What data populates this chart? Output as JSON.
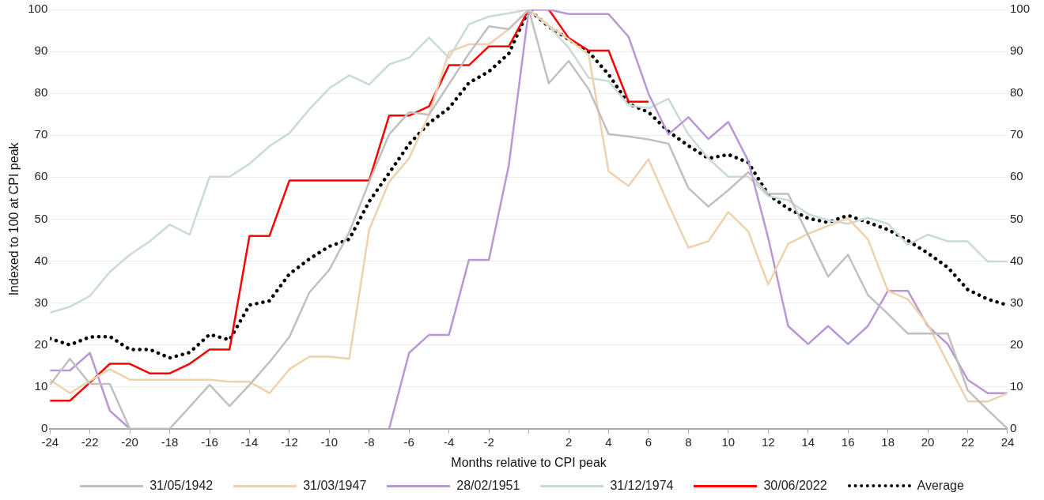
{
  "chart_data": {
    "type": "line",
    "xlabel": "Months relative to CPI peak",
    "ylabel": "Indexed to 100 at CPI peak",
    "x": [
      -24,
      -23,
      -22,
      -21,
      -20,
      -19,
      -18,
      -17,
      -16,
      -15,
      -14,
      -13,
      -12,
      -11,
      -10,
      -9,
      -8,
      -7,
      -6,
      -5,
      -4,
      -3,
      -2,
      -1,
      0,
      1,
      2,
      3,
      4,
      5,
      6,
      7,
      8,
      9,
      10,
      11,
      12,
      13,
      14,
      15,
      16,
      17,
      18,
      19,
      20,
      21,
      22,
      23,
      24
    ],
    "xlim": [
      -24,
      24
    ],
    "xticks": [
      -24,
      -22,
      -20,
      -18,
      -16,
      -14,
      -12,
      -10,
      -8,
      -6,
      -4,
      -2,
      {
        "value": 0,
        "label": null
      },
      2,
      4,
      6,
      8,
      10,
      12,
      14,
      16,
      18,
      20,
      22,
      24
    ],
    "ylim": [
      0,
      100
    ],
    "yticks": [
      0,
      10,
      20,
      30,
      40,
      50,
      60,
      70,
      80,
      90,
      100
    ],
    "y2lim": [
      0,
      100
    ],
    "y2ticks": [
      0,
      10,
      20,
      30,
      40,
      50,
      60,
      70,
      80,
      90,
      100
    ],
    "grid": "y",
    "legend": "bottom",
    "marker": "none",
    "series": [
      {
        "name": "31/05/1942",
        "color": "#c0c0c0",
        "values": [
          10.5,
          16.7,
          10.7,
          10.7,
          0,
          0,
          0,
          5.2,
          10.5,
          5.4,
          10.5,
          15.9,
          21.9,
          32.5,
          37.9,
          46.9,
          58.9,
          70.2,
          75.5,
          74.9,
          82.2,
          89.5,
          96,
          95.3,
          100,
          82.4,
          87.7,
          81,
          70.3,
          69.7,
          69,
          68,
          57.4,
          53,
          56.9,
          61.2,
          56,
          56,
          46.2,
          36.3,
          41.5,
          31.9,
          27.4,
          22.7,
          22.7,
          22.7,
          9.2,
          4.5,
          0
        ]
      },
      {
        "name": "31/03/1947",
        "color": "#edd2ad",
        "values": [
          11.7,
          8.5,
          11.4,
          14.2,
          11.7,
          11.7,
          11.7,
          11.7,
          11.7,
          11.2,
          11.2,
          8.5,
          14.2,
          17.2,
          17.2,
          16.7,
          47.5,
          58.9,
          64.5,
          74.9,
          89.9,
          91.7,
          91.7,
          95.3,
          100,
          96.2,
          92.9,
          89.2,
          61.4,
          57.9,
          64.3,
          53.5,
          43.2,
          44.7,
          51.7,
          47.1,
          34.4,
          44.1,
          46.5,
          48.4,
          50.2,
          45.2,
          32.9,
          30.9,
          24.9,
          15.7,
          6.5,
          6.5,
          8.5
        ]
      },
      {
        "name": "28/02/1951",
        "color": "#b996d4",
        "values": [
          13.9,
          13.9,
          18.1,
          4.3,
          0,
          null,
          null,
          null,
          null,
          null,
          null,
          null,
          null,
          null,
          null,
          null,
          null,
          0,
          18.1,
          22.4,
          22.4,
          40.3,
          40.3,
          62.9,
          100,
          100,
          98.9,
          98.9,
          98.9,
          93.5,
          79.9,
          70.2,
          74.3,
          69.1,
          73.2,
          63.9,
          45.5,
          24.5,
          20.2,
          24.5,
          20.2,
          24.5,
          32.9,
          32.9,
          24.5,
          20.2,
          11.7,
          8.5,
          8.5
        ]
      },
      {
        "name": "31/12/1974",
        "color": "#c9dcd4",
        "values": [
          27.7,
          29.1,
          31.7,
          37.4,
          41.5,
          44.7,
          48.7,
          46.3,
          60.1,
          60.1,
          63.2,
          67.4,
          70.5,
          76.2,
          81.2,
          84.3,
          82.1,
          86.9,
          88.5,
          93.3,
          88.5,
          96.5,
          98.3,
          99.1,
          100,
          96,
          90.9,
          83.7,
          82.9,
          77.2,
          76.4,
          78.7,
          70.2,
          64.5,
          60.1,
          60.1,
          55.5,
          54.5,
          51.2,
          49.7,
          48.9,
          50.3,
          48.9,
          43.9,
          46.3,
          44.7,
          44.7,
          39.9,
          39.9
        ]
      },
      {
        "name": "30/06/2022",
        "color": "#ff0000",
        "values": [
          6.7,
          6.7,
          11,
          15.5,
          15.5,
          13.2,
          13.2,
          15.5,
          18.9,
          18.9,
          46,
          46,
          59.2,
          59.2,
          59.2,
          59.2,
          59.2,
          74.7,
          74.7,
          76.9,
          86.7,
          86.7,
          91.2,
          91.2,
          100,
          100,
          93.2,
          90.2,
          90.2,
          78,
          78,
          null,
          null,
          null,
          null,
          null,
          null,
          null,
          null,
          null,
          null,
          null,
          null,
          null,
          null,
          null,
          null,
          null,
          null
        ]
      },
      {
        "name": "Average",
        "color": "#000000",
        "line_style": "dotted",
        "values": [
          21.5,
          20,
          21.9,
          22,
          18.9,
          18.9,
          16.9,
          18.2,
          22.5,
          21.2,
          29.5,
          30.5,
          36.9,
          40.5,
          43.5,
          45.2,
          54.2,
          61,
          67.9,
          72.9,
          76.5,
          82.5,
          85.2,
          89.5,
          100,
          95.9,
          92.9,
          89.9,
          84.5,
          77.5,
          75.5,
          70.9,
          67.5,
          64.5,
          65.4,
          63.5,
          55.9,
          52.5,
          50.2,
          49.2,
          50.9,
          49.2,
          47.5,
          44.9,
          41.9,
          38.5,
          33.2,
          30.9,
          29.5
        ]
      }
    ]
  }
}
